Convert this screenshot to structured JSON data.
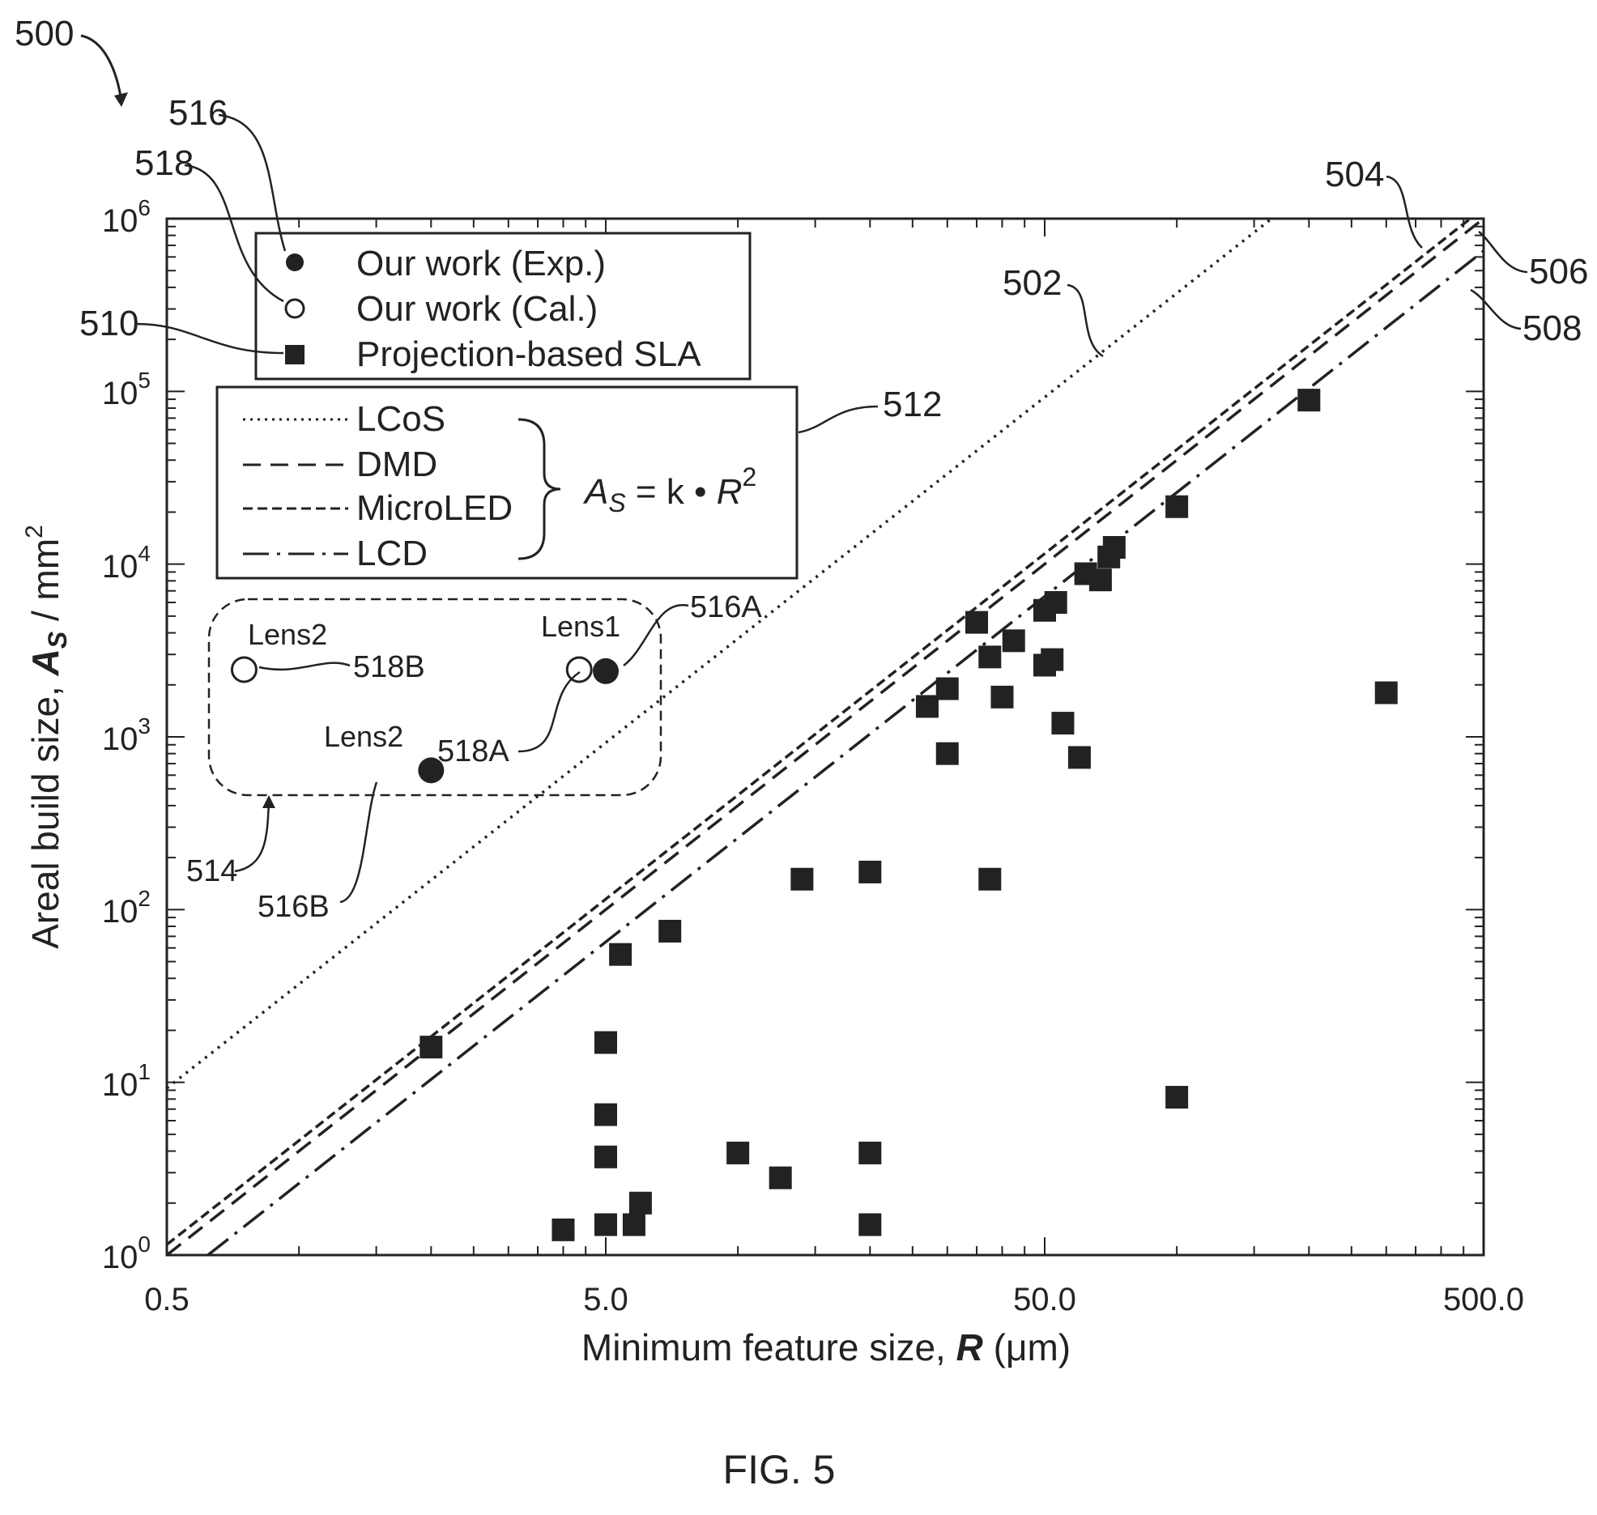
{
  "figure": {
    "ref_number": "500",
    "caption": "FIG. 5"
  },
  "chart_data": {
    "type": "scatter",
    "x_scale": "log",
    "y_scale": "log",
    "xlim": [
      0.5,
      500
    ],
    "ylim": [
      1,
      1000000
    ],
    "xlabel": {
      "prefix": "Minimum feature size, ",
      "var": "R",
      "unit": "(μm)"
    },
    "ylabel": {
      "prefix": "Areal build size, ",
      "var": "A",
      "sub": "S",
      "unit": " / mm",
      "unit_sup": "2"
    },
    "x_ticks": [
      {
        "value": 0.5,
        "label": "0.5"
      },
      {
        "value": 5,
        "label": "5.0"
      },
      {
        "value": 50,
        "label": "50.0"
      },
      {
        "value": 500,
        "label": "500.0"
      }
    ],
    "y_ticks": [
      {
        "exp": 0,
        "base": "10",
        "power": "0"
      },
      {
        "exp": 1,
        "base": "10",
        "power": "1"
      },
      {
        "exp": 2,
        "base": "10",
        "power": "2"
      },
      {
        "exp": 3,
        "base": "10",
        "power": "3"
      },
      {
        "exp": 4,
        "base": "10",
        "power": "4"
      },
      {
        "exp": 5,
        "base": "10",
        "power": "5"
      },
      {
        "exp": 6,
        "base": "10",
        "power": "6"
      }
    ],
    "lines": [
      {
        "name": "LCoS",
        "ref": "502",
        "dash": "dotted",
        "k": 37,
        "x_range": [
          0.5,
          500
        ]
      },
      {
        "name": "DMD",
        "ref": "504",
        "dash": "dash",
        "k": 4.0,
        "x_range": [
          0.5,
          500
        ]
      },
      {
        "name": "MicroLED",
        "ref": "506",
        "dash": "short-dash",
        "k": 4.6,
        "x_range": [
          0.5,
          500
        ]
      },
      {
        "name": "LCD",
        "ref": "508",
        "dash": "dash-dot",
        "k": 2.6,
        "x_range": [
          0.62,
          500
        ]
      }
    ],
    "equation": {
      "lhs": "A",
      "lhs_sub": "S",
      "rhs": " = k • ",
      "var": "R",
      "power": "2"
    },
    "series": [
      {
        "name": "Our work (Exp.)",
        "ref": "516",
        "marker": "filled-circle",
        "points": [
          {
            "x": 5.0,
            "y": 2400,
            "ref": "516A",
            "tag": "Lens1"
          },
          {
            "x": 2.0,
            "y": 640,
            "ref": "516B",
            "tag": "Lens2"
          }
        ]
      },
      {
        "name": "Our work (Cal.)",
        "ref": "518",
        "marker": "open-circle",
        "points": [
          {
            "x": 4.35,
            "y": 2450,
            "ref": "518A",
            "tag": "Lens1"
          },
          {
            "x": 0.75,
            "y": 2450,
            "ref": "518B",
            "tag": "Lens2"
          }
        ]
      },
      {
        "name": "Projection-based SLA",
        "ref": "510",
        "marker": "filled-square",
        "points": [
          {
            "x": 2.0,
            "y": 16
          },
          {
            "x": 4.0,
            "y": 1.4
          },
          {
            "x": 5.0,
            "y": 1.5
          },
          {
            "x": 5.0,
            "y": 3.7
          },
          {
            "x": 5.0,
            "y": 6.5
          },
          {
            "x": 5.0,
            "y": 17
          },
          {
            "x": 5.4,
            "y": 55
          },
          {
            "x": 5.8,
            "y": 1.5
          },
          {
            "x": 6.0,
            "y": 2.0
          },
          {
            "x": 7.0,
            "y": 75
          },
          {
            "x": 10.0,
            "y": 3.9
          },
          {
            "x": 12.5,
            "y": 2.8
          },
          {
            "x": 14.0,
            "y": 150
          },
          {
            "x": 20.0,
            "y": 3.9
          },
          {
            "x": 20.0,
            "y": 1.5
          },
          {
            "x": 20.0,
            "y": 165
          },
          {
            "x": 27.0,
            "y": 1500
          },
          {
            "x": 30.0,
            "y": 1900
          },
          {
            "x": 30.0,
            "y": 800
          },
          {
            "x": 35.0,
            "y": 4600
          },
          {
            "x": 37.5,
            "y": 2900
          },
          {
            "x": 37.5,
            "y": 150
          },
          {
            "x": 40.0,
            "y": 1700
          },
          {
            "x": 42.5,
            "y": 3600
          },
          {
            "x": 50.0,
            "y": 5400
          },
          {
            "x": 50.0,
            "y": 2600
          },
          {
            "x": 52.0,
            "y": 2800
          },
          {
            "x": 53.0,
            "y": 6000
          },
          {
            "x": 55.0,
            "y": 1200
          },
          {
            "x": 60.0,
            "y": 760
          },
          {
            "x": 62.0,
            "y": 8800
          },
          {
            "x": 67.0,
            "y": 8100
          },
          {
            "x": 70.0,
            "y": 11000
          },
          {
            "x": 72.0,
            "y": 12500
          },
          {
            "x": 100.0,
            "y": 21500
          },
          {
            "x": 100.0,
            "y": 8.2
          },
          {
            "x": 200.0,
            "y": 89000
          },
          {
            "x": 300.0,
            "y": 1800
          }
        ]
      }
    ],
    "group_box": {
      "ref": "514"
    },
    "legend_refs": {
      "markers": "510",
      "lines": "512"
    }
  }
}
